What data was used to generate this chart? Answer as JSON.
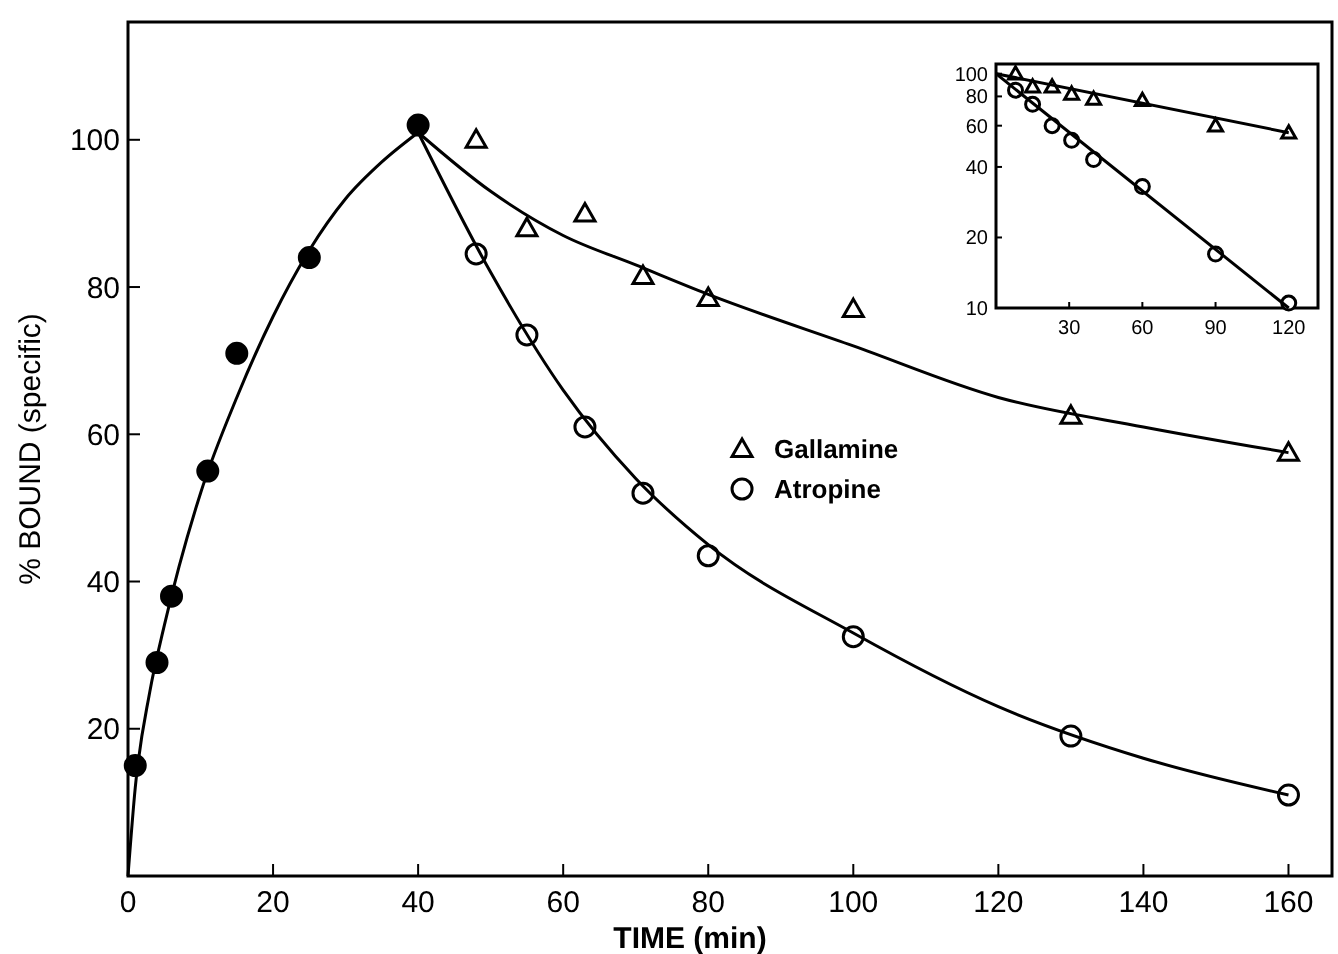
{
  "chart_data": [
    {
      "type": "scatter",
      "xlabel": "TIME (min)",
      "ylabel": "% BOUND (specific)",
      "xlim": [
        0,
        166
      ],
      "ylim": [
        0,
        116
      ],
      "xticks": [
        0,
        20,
        40,
        60,
        80,
        100,
        120,
        140,
        160
      ],
      "yticks": [
        20,
        40,
        60,
        80,
        100
      ],
      "grid": false,
      "legend": "right",
      "series": [
        {
          "color": "#000000",
          "marker": "circle",
          "x": [
            1,
            4,
            6,
            11,
            15,
            25,
            40
          ],
          "values": [
            15,
            29,
            38,
            55,
            71,
            84,
            102
          ]
        },
        {
          "name": "Gallamine",
          "color": "#000000",
          "marker": "triangle",
          "x": [
            48,
            55,
            63,
            71,
            80,
            100,
            130,
            160
          ],
          "values": [
            100,
            88,
            90,
            81.5,
            78.5,
            77,
            62.5,
            57.5
          ]
        },
        {
          "name": "Atropine",
          "color": "#000000",
          "marker": "circle",
          "x": [
            48,
            55,
            63,
            71,
            80,
            100,
            130,
            160
          ],
          "values": [
            84.5,
            73.5,
            61,
            52,
            43.5,
            32.5,
            19,
            11
          ]
        },
        {
          "type": "line",
          "color": "#000000",
          "marker": "none",
          "x": [
            0,
            1,
            3,
            5,
            10,
            15,
            20,
            25,
            30,
            35,
            40
          ],
          "values": [
            0,
            12,
            25,
            34,
            52,
            65,
            76,
            85,
            92,
            97,
            101
          ]
        },
        {
          "type": "line",
          "color": "#000000",
          "marker": "none",
          "x": [
            40,
            50,
            60,
            70,
            80,
            100,
            120,
            140,
            160
          ],
          "values": [
            101,
            93,
            87,
            83,
            79,
            72,
            65,
            61,
            57.5
          ]
        },
        {
          "type": "line",
          "color": "#000000",
          "marker": "none",
          "x": [
            40,
            50,
            60,
            70,
            80,
            100,
            120,
            140,
            160
          ],
          "values": [
            101,
            82,
            66,
            54,
            45,
            33,
            23,
            16,
            11
          ]
        }
      ]
    },
    {
      "type": "scatter",
      "log": "y",
      "xlim": [
        0,
        132
      ],
      "ylim": [
        10,
        110
      ],
      "xticks": [
        30,
        60,
        90,
        120
      ],
      "yticks": [
        10,
        20,
        40,
        60,
        80,
        100
      ],
      "grid": false,
      "series": [
        {
          "color": "#000000",
          "marker": "triangle",
          "x": [
            8,
            15,
            23,
            31,
            40,
            60,
            90,
            120
          ],
          "values": [
            100,
            88,
            88,
            82,
            78,
            77,
            60,
            56
          ]
        },
        {
          "color": "#000000",
          "marker": "circle",
          "x": [
            8,
            15,
            23,
            31,
            40,
            60,
            90,
            120
          ],
          "values": [
            85,
            74,
            60,
            52,
            43,
            33,
            17,
            10.5
          ]
        },
        {
          "type": "line",
          "color": "#000000",
          "marker": "none",
          "x": [
            0,
            120
          ],
          "values": [
            100,
            56
          ]
        },
        {
          "type": "line",
          "color": "#000000",
          "marker": "none",
          "x": [
            0,
            120
          ],
          "values": [
            100,
            10
          ]
        }
      ]
    }
  ]
}
